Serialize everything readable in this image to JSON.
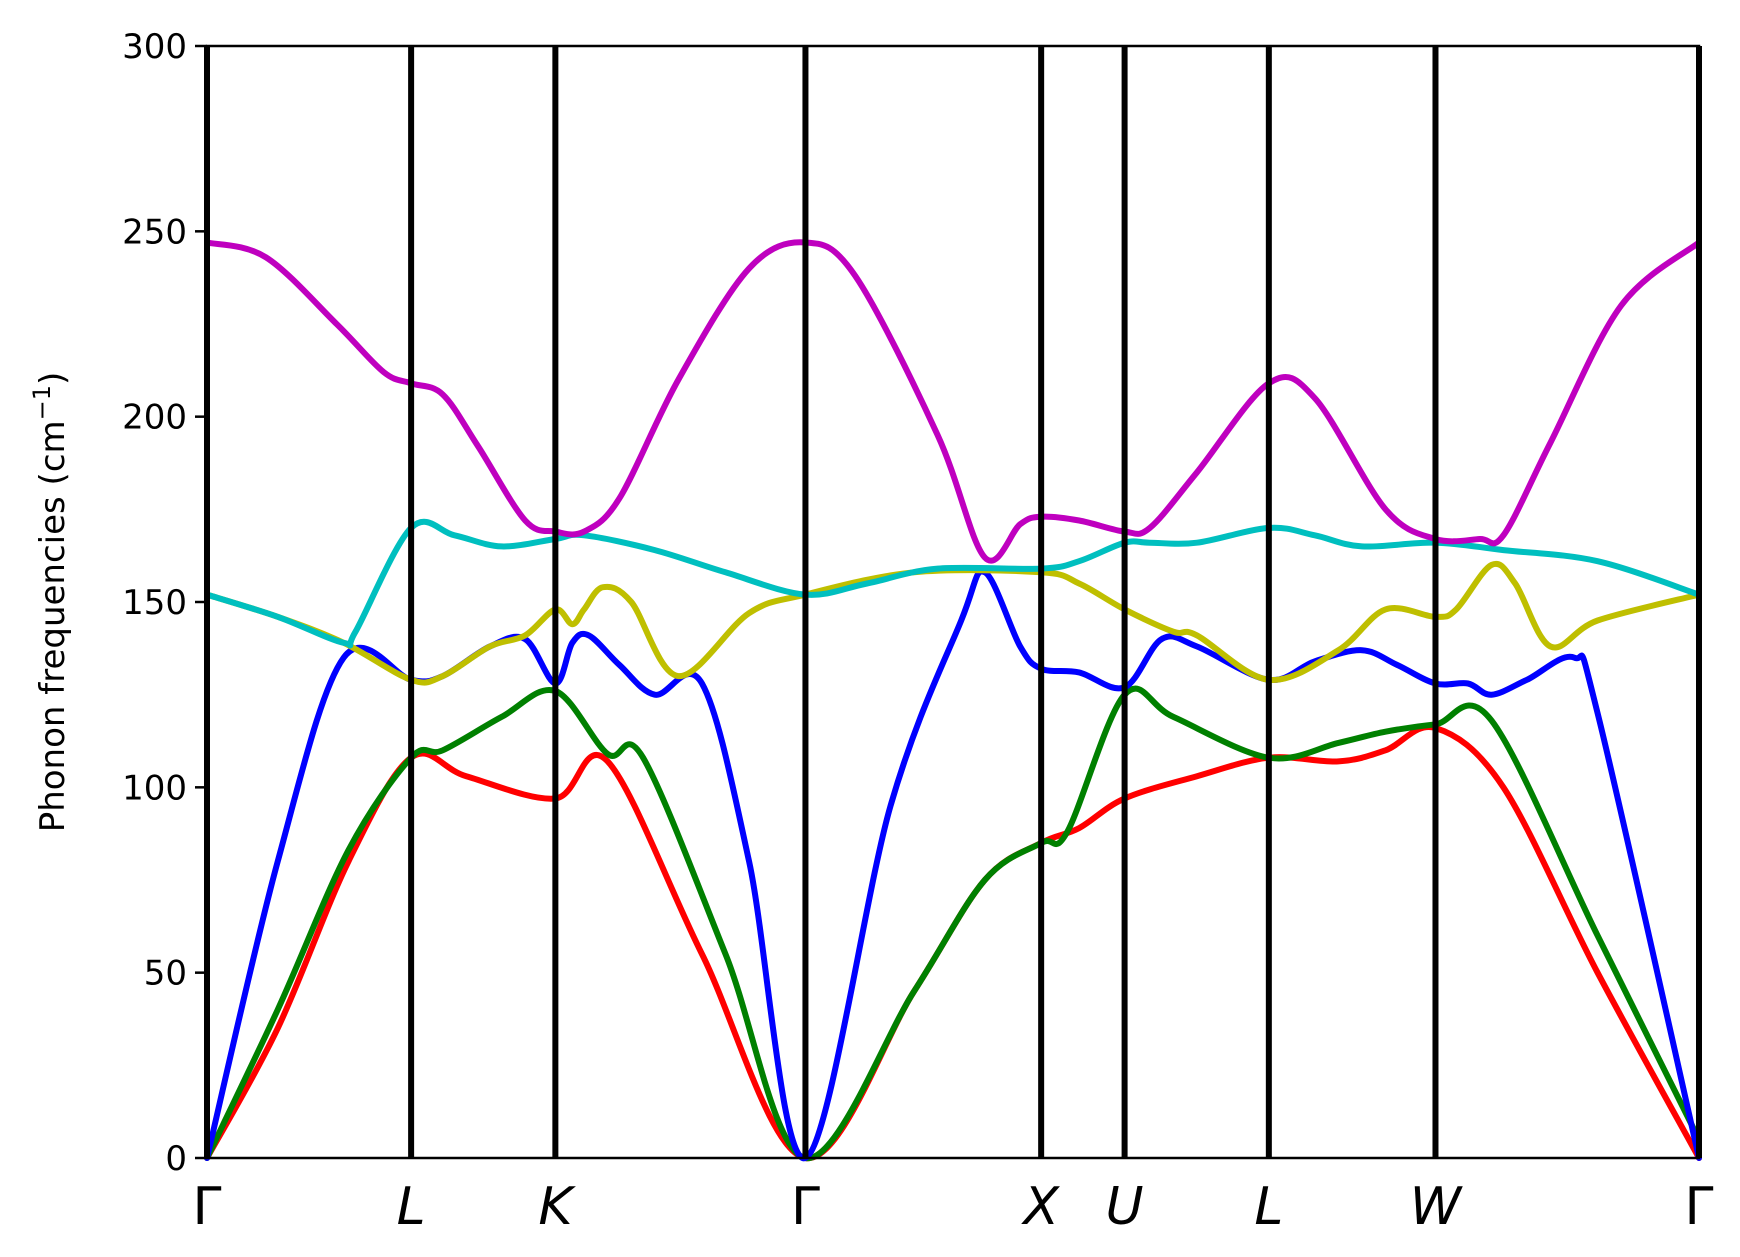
{
  "chart_data": {
    "type": "line",
    "title": "",
    "xlabel": "",
    "ylabel": "Phonon frequencies (cm",
    "ylabel_sup": "−1",
    "ylabel_close": ")",
    "ylim": [
      0,
      300
    ],
    "yticks": [
      0,
      50,
      100,
      150,
      200,
      250,
      300
    ],
    "grid": false,
    "legend": "none",
    "kpath": [
      {
        "label": "Γ",
        "pos": 0.0
      },
      {
        "label": "L",
        "pos": 0.866
      },
      {
        "label": "K",
        "pos": 1.478
      },
      {
        "label": "Γ",
        "pos": 2.539
      },
      {
        "label": "X",
        "pos": 3.539
      },
      {
        "label": "U",
        "pos": 3.893
      },
      {
        "label": "L",
        "pos": 4.505
      },
      {
        "label": "W",
        "pos": 5.212
      },
      {
        "label": "Γ",
        "pos": 6.33
      }
    ],
    "series": [
      {
        "color": "#ff0000",
        "points": [
          [
            0,
            0
          ],
          [
            0.3,
            35
          ],
          [
            0.6,
            80
          ],
          [
            0.866,
            108
          ],
          [
            1.1,
            103
          ],
          [
            1.478,
            97
          ],
          [
            1.7,
            107
          ],
          [
            2.1,
            55
          ],
          [
            2.539,
            0
          ],
          [
            3.0,
            45
          ],
          [
            3.3,
            75
          ],
          [
            3.539,
            85
          ],
          [
            3.7,
            89
          ],
          [
            3.893,
            97
          ],
          [
            4.2,
            103
          ],
          [
            4.505,
            108
          ],
          [
            4.8,
            107
          ],
          [
            5.0,
            110
          ],
          [
            5.212,
            116
          ],
          [
            5.5,
            100
          ],
          [
            5.9,
            50
          ],
          [
            6.33,
            0
          ]
        ]
      },
      {
        "color": "#008000",
        "points": [
          [
            0,
            0
          ],
          [
            0.3,
            40
          ],
          [
            0.6,
            83
          ],
          [
            0.866,
            108
          ],
          [
            1.0,
            110
          ],
          [
            1.25,
            119
          ],
          [
            1.478,
            126
          ],
          [
            1.7,
            109
          ],
          [
            1.85,
            108
          ],
          [
            2.2,
            55
          ],
          [
            2.539,
            0
          ],
          [
            3.0,
            45
          ],
          [
            3.3,
            75
          ],
          [
            3.539,
            85
          ],
          [
            3.65,
            88
          ],
          [
            3.893,
            125
          ],
          [
            4.1,
            119
          ],
          [
            4.505,
            108
          ],
          [
            4.8,
            112
          ],
          [
            5.0,
            115
          ],
          [
            5.212,
            117
          ],
          [
            5.45,
            118
          ],
          [
            5.9,
            60
          ],
          [
            6.33,
            5
          ]
        ]
      },
      {
        "color": "#0000ff",
        "points": [
          [
            0,
            0
          ],
          [
            0.3,
            80
          ],
          [
            0.58,
            135
          ],
          [
            0.866,
            129
          ],
          [
            1.0,
            130
          ],
          [
            1.2,
            138
          ],
          [
            1.35,
            140
          ],
          [
            1.478,
            128
          ],
          [
            1.55,
            139
          ],
          [
            1.62,
            141
          ],
          [
            1.75,
            133
          ],
          [
            1.9,
            125
          ],
          [
            2.1,
            128
          ],
          [
            2.3,
            80
          ],
          [
            2.539,
            0
          ],
          [
            2.9,
            95
          ],
          [
            3.2,
            145
          ],
          [
            3.3,
            158
          ],
          [
            3.45,
            138
          ],
          [
            3.539,
            132
          ],
          [
            3.7,
            131
          ],
          [
            3.893,
            127
          ],
          [
            4.05,
            140
          ],
          [
            4.2,
            138
          ],
          [
            4.505,
            129
          ],
          [
            4.7,
            134
          ],
          [
            4.9,
            137
          ],
          [
            5.05,
            133
          ],
          [
            5.212,
            128
          ],
          [
            5.35,
            128
          ],
          [
            5.45,
            125
          ],
          [
            5.6,
            129
          ],
          [
            5.8,
            135
          ],
          [
            5.9,
            120
          ],
          [
            6.33,
            0
          ]
        ]
      },
      {
        "color": "#bfbf00",
        "points": [
          [
            0,
            152
          ],
          [
            0.3,
            146
          ],
          [
            0.58,
            139
          ],
          [
            0.866,
            129
          ],
          [
            1.0,
            130
          ],
          [
            1.2,
            138
          ],
          [
            1.35,
            141
          ],
          [
            1.478,
            148
          ],
          [
            1.55,
            144
          ],
          [
            1.6,
            148
          ],
          [
            1.68,
            154
          ],
          [
            1.8,
            150
          ],
          [
            2.0,
            130
          ],
          [
            2.3,
            147
          ],
          [
            2.539,
            152
          ],
          [
            3.0,
            158
          ],
          [
            3.539,
            158
          ],
          [
            3.7,
            155
          ],
          [
            3.893,
            148
          ],
          [
            4.1,
            142
          ],
          [
            4.2,
            141
          ],
          [
            4.505,
            129
          ],
          [
            4.8,
            137
          ],
          [
            5.0,
            148
          ],
          [
            5.212,
            146
          ],
          [
            5.3,
            148
          ],
          [
            5.45,
            160
          ],
          [
            5.55,
            155
          ],
          [
            5.7,
            138
          ],
          [
            5.9,
            145
          ],
          [
            6.33,
            152
          ]
        ]
      },
      {
        "color": "#00bfbf",
        "points": [
          [
            0,
            152
          ],
          [
            0.3,
            146
          ],
          [
            0.58,
            139
          ],
          [
            0.63,
            142
          ],
          [
            0.866,
            170
          ],
          [
            1.05,
            168
          ],
          [
            1.25,
            165
          ],
          [
            1.478,
            167
          ],
          [
            1.6,
            168
          ],
          [
            1.9,
            164
          ],
          [
            2.2,
            158
          ],
          [
            2.539,
            152
          ],
          [
            2.8,
            155
          ],
          [
            3.1,
            159
          ],
          [
            3.539,
            159
          ],
          [
            3.7,
            161
          ],
          [
            3.893,
            166
          ],
          [
            4.0,
            166
          ],
          [
            4.2,
            166
          ],
          [
            4.505,
            170
          ],
          [
            4.7,
            168
          ],
          [
            4.9,
            165
          ],
          [
            5.212,
            166
          ],
          [
            5.5,
            164
          ],
          [
            5.9,
            161
          ],
          [
            6.33,
            152
          ]
        ]
      },
      {
        "color": "#bf00bf",
        "points": [
          [
            0,
            247
          ],
          [
            0.25,
            243
          ],
          [
            0.55,
            225
          ],
          [
            0.75,
            212
          ],
          [
            0.866,
            209
          ],
          [
            1.0,
            206
          ],
          [
            1.15,
            192
          ],
          [
            1.35,
            172
          ],
          [
            1.478,
            169
          ],
          [
            1.6,
            169
          ],
          [
            1.75,
            178
          ],
          [
            2.0,
            210
          ],
          [
            2.3,
            240
          ],
          [
            2.539,
            247
          ],
          [
            2.75,
            238
          ],
          [
            3.1,
            195
          ],
          [
            3.3,
            162
          ],
          [
            3.45,
            171
          ],
          [
            3.539,
            173
          ],
          [
            3.7,
            172
          ],
          [
            3.893,
            169
          ],
          [
            4.0,
            170
          ],
          [
            4.2,
            185
          ],
          [
            4.505,
            209
          ],
          [
            4.7,
            205
          ],
          [
            5.0,
            175
          ],
          [
            5.212,
            167
          ],
          [
            5.4,
            167
          ],
          [
            5.5,
            168
          ],
          [
            5.7,
            193
          ],
          [
            6.0,
            230
          ],
          [
            6.33,
            247
          ]
        ]
      }
    ]
  }
}
